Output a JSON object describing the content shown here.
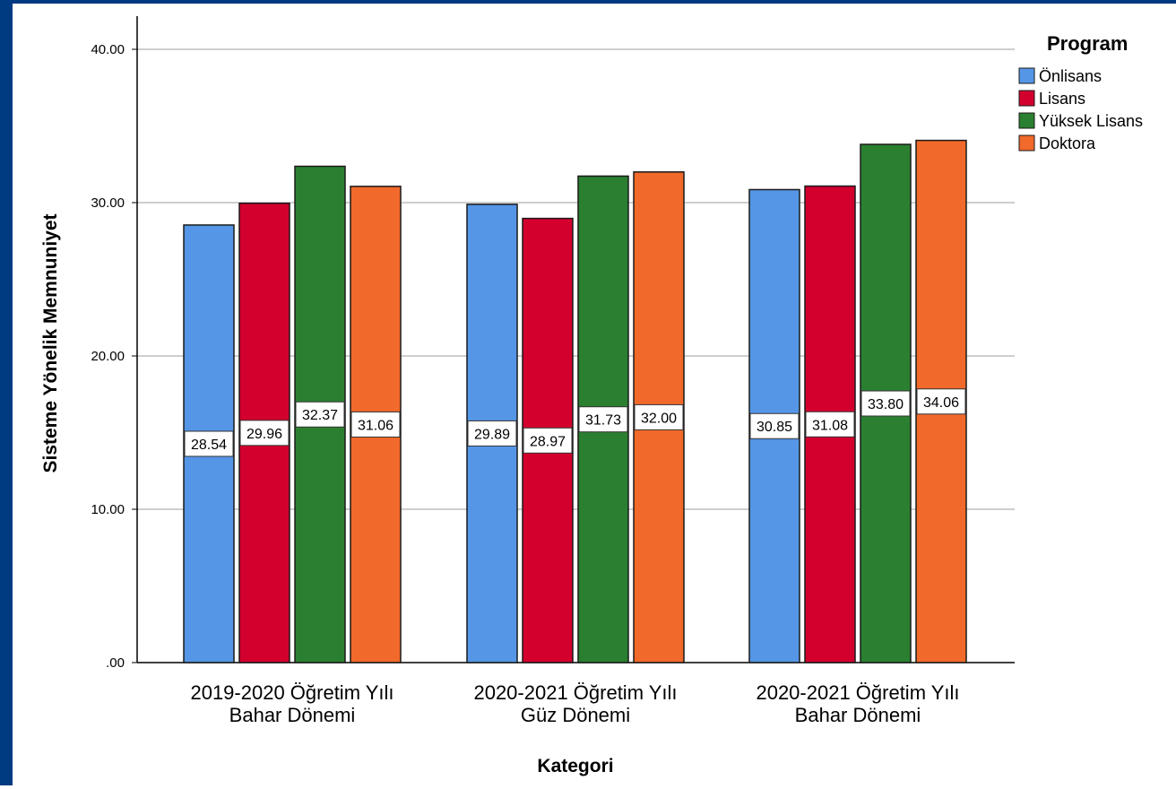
{
  "chart_data": {
    "type": "bar",
    "ylabel": "Sisteme Yönelik Memnuniyet",
    "xlabel": "Kategori",
    "ylim": [
      0,
      42
    ],
    "yticks": [
      ".00",
      "10.00",
      "20.00",
      "30.00",
      "40.00"
    ],
    "ytick_values": [
      0,
      10,
      20,
      30,
      40
    ],
    "grid": true,
    "legend": {
      "title": "Program",
      "placement": "top-right"
    },
    "categories": [
      [
        "2019-2020 Öğretim Yılı",
        "Bahar Dönemi"
      ],
      [
        "2020-2021 Öğretim Yılı",
        "Güz Dönemi"
      ],
      [
        "2020-2021 Öğretim Yılı",
        "Bahar Dönemi"
      ]
    ],
    "series": [
      {
        "name": "Önlisans",
        "color": "#5596e6",
        "values": [
          28.54,
          29.89,
          30.85
        ],
        "labels": [
          "28.54",
          "29.89",
          "30.85"
        ]
      },
      {
        "name": "Lisans",
        "color": "#d3002e",
        "values": [
          29.96,
          28.97,
          31.08
        ],
        "labels": [
          "29.96",
          "28.97",
          "31.08"
        ]
      },
      {
        "name": "Yüksek Lisans",
        "color": "#2a8030",
        "values": [
          32.37,
          31.73,
          33.8
        ],
        "labels": [
          "32.37",
          "31.73",
          "33.80"
        ]
      },
      {
        "name": "Doktora",
        "color": "#f1692b",
        "values": [
          31.06,
          32.0,
          34.06
        ],
        "labels": [
          "31.06",
          "32.00",
          "34.06"
        ]
      }
    ]
  }
}
